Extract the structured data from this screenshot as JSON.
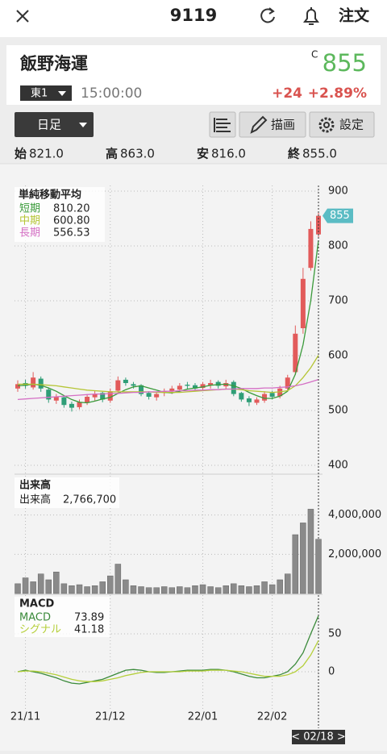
{
  "header": {
    "title": "9119",
    "order": "注文"
  },
  "quote": {
    "name": "飯野海運",
    "close_mark": "C",
    "price": "855",
    "market": "東1",
    "time": "15:00:00",
    "change": "+24",
    "change_pct": "+2.89%"
  },
  "toolbar": {
    "period": "日足",
    "draw": "描画",
    "settings": "設定"
  },
  "ohlc": [
    {
      "label": "始",
      "value": "821.0"
    },
    {
      "label": "高",
      "value": "863.0"
    },
    {
      "label": "安",
      "value": "816.0"
    },
    {
      "label": "終",
      "value": "855.0"
    }
  ],
  "chart_data": [
    {
      "type": "candlestick",
      "title": "単純移動平均",
      "cursor_label": "< 02/18 >",
      "categories": [
        null,
        "21/11",
        null,
        null,
        null,
        null,
        null,
        null,
        null,
        null,
        null,
        null,
        "21/12",
        null,
        null,
        null,
        null,
        null,
        null,
        null,
        null,
        null,
        null,
        null,
        "22/01",
        null,
        null,
        null,
        null,
        null,
        null,
        null,
        null,
        "22/02",
        null,
        null,
        null,
        null,
        null,
        null
      ],
      "open": [
        540,
        550,
        542,
        558,
        538,
        518,
        524,
        512,
        506,
        514,
        524,
        532,
        518,
        536,
        556,
        548,
        546,
        532,
        524,
        532,
        536,
        538,
        547,
        546,
        541,
        546,
        552,
        544,
        552,
        532,
        522,
        514,
        518,
        532,
        526,
        540,
        570,
        650,
        760,
        821
      ],
      "high": [
        555,
        556,
        570,
        562,
        542,
        530,
        528,
        516,
        520,
        530,
        536,
        534,
        540,
        562,
        560,
        552,
        548,
        535,
        533,
        540,
        545,
        550,
        552,
        550,
        552,
        556,
        555,
        556,
        555,
        534,
        526,
        524,
        535,
        536,
        545,
        565,
        655,
        760,
        845,
        863
      ],
      "low": [
        534,
        540,
        538,
        534,
        514,
        512,
        505,
        498,
        502,
        510,
        518,
        515,
        514,
        530,
        545,
        540,
        526,
        520,
        518,
        526,
        530,
        534,
        538,
        535,
        536,
        540,
        540,
        538,
        526,
        516,
        508,
        510,
        514,
        520,
        522,
        536,
        565,
        640,
        755,
        816
      ],
      "close": [
        548,
        545,
        560,
        540,
        520,
        525,
        510,
        505,
        515,
        525,
        530,
        520,
        535,
        555,
        550,
        545,
        530,
        525,
        530,
        535,
        540,
        545,
        545,
        540,
        548,
        550,
        545,
        550,
        530,
        520,
        515,
        520,
        530,
        525,
        540,
        560,
        640,
        740,
        831,
        855
      ],
      "up_color": "#e25b5b",
      "down_color": "#2f9e77",
      "series": [
        {
          "name": "短期",
          "color": "#3a9a3a",
          "value_label": "810.20",
          "values": [
            545,
            546,
            548,
            546,
            541,
            535,
            527,
            520,
            515,
            514,
            517,
            521,
            524,
            531,
            538,
            543,
            545,
            541,
            537,
            533,
            532,
            535,
            539,
            541,
            543,
            546,
            547,
            548,
            545,
            540,
            533,
            527,
            522,
            522,
            526,
            535,
            566,
            620,
            700,
            810.2
          ]
        },
        {
          "name": "中期",
          "color": "#b5c535",
          "value_label": "600.80",
          "values": [
            548,
            548,
            548,
            547,
            546,
            545,
            543,
            541,
            539,
            537,
            536,
            535,
            534,
            534,
            534,
            534,
            534,
            534,
            533,
            533,
            533,
            533,
            534,
            535,
            536,
            537,
            538,
            539,
            539,
            538,
            536,
            535,
            534,
            533,
            534,
            536,
            545,
            560,
            578,
            600.8
          ]
        },
        {
          "name": "長期",
          "color": "#d46fc4",
          "value_label": "556.53",
          "values": [
            520,
            521,
            522,
            523,
            524,
            525,
            526,
            527,
            528,
            529,
            530,
            530,
            531,
            531,
            532,
            533,
            533,
            534,
            534,
            535,
            535,
            536,
            536,
            537,
            537,
            538,
            538,
            539,
            539,
            540,
            540,
            540,
            541,
            541,
            542,
            543,
            545,
            548,
            552,
            556.53
          ]
        }
      ],
      "ylim": [
        400,
        900
      ],
      "yticks": [
        400,
        500,
        600,
        700,
        800,
        900
      ],
      "grid": true
    },
    {
      "type": "bar",
      "title": "出来高",
      "color": "#8a8a8a",
      "series": [
        {
          "name": "出来高",
          "value_label": "2,766,700",
          "values": [
            500000,
            800000,
            600000,
            1000000,
            700000,
            1100000,
            500000,
            400000,
            450000,
            350000,
            400000,
            600000,
            900000,
            1500000,
            700000,
            400000,
            350000,
            300000,
            300000,
            350000,
            300000,
            350000,
            300000,
            400000,
            450000,
            350000,
            300000,
            400000,
            500000,
            400000,
            350000,
            400000,
            600000,
            450000,
            700000,
            1000000,
            3000000,
            3600000,
            4300000,
            2766700
          ]
        }
      ],
      "ylim": [
        0,
        6000000
      ],
      "yticks": [
        {
          "value": 2000000,
          "label": "2,000,000"
        },
        {
          "value": 4000000,
          "label": "4,000,000"
        }
      ],
      "grid": true
    },
    {
      "type": "line",
      "title": "MACD",
      "series": [
        {
          "name": "MACD",
          "color": "#3a8a3a",
          "values": [
            0,
            2,
            0,
            -2,
            -5,
            -8,
            -12,
            -15,
            -16,
            -14,
            -12,
            -10,
            -6,
            -2,
            2,
            3,
            2,
            0,
            -1,
            -1,
            0,
            1,
            2,
            2,
            2,
            3,
            3,
            2,
            0,
            -3,
            -6,
            -8,
            -8,
            -6,
            -4,
            0,
            10,
            25,
            50,
            73.89
          ]
        },
        {
          "name": "シグナル",
          "color": "#b5cf3a",
          "values": [
            0,
            1,
            1,
            0,
            -2,
            -4,
            -7,
            -10,
            -12,
            -13,
            -13,
            -12,
            -10,
            -8,
            -5,
            -3,
            -1,
            0,
            0,
            0,
            0,
            0,
            1,
            1,
            1,
            2,
            2,
            2,
            1,
            0,
            -2,
            -4,
            -6,
            -6,
            -6,
            -4,
            0,
            8,
            22,
            41.18
          ]
        }
      ],
      "ylim": [
        -50,
        100
      ],
      "yticks": [
        0,
        50
      ],
      "grid": true
    }
  ]
}
